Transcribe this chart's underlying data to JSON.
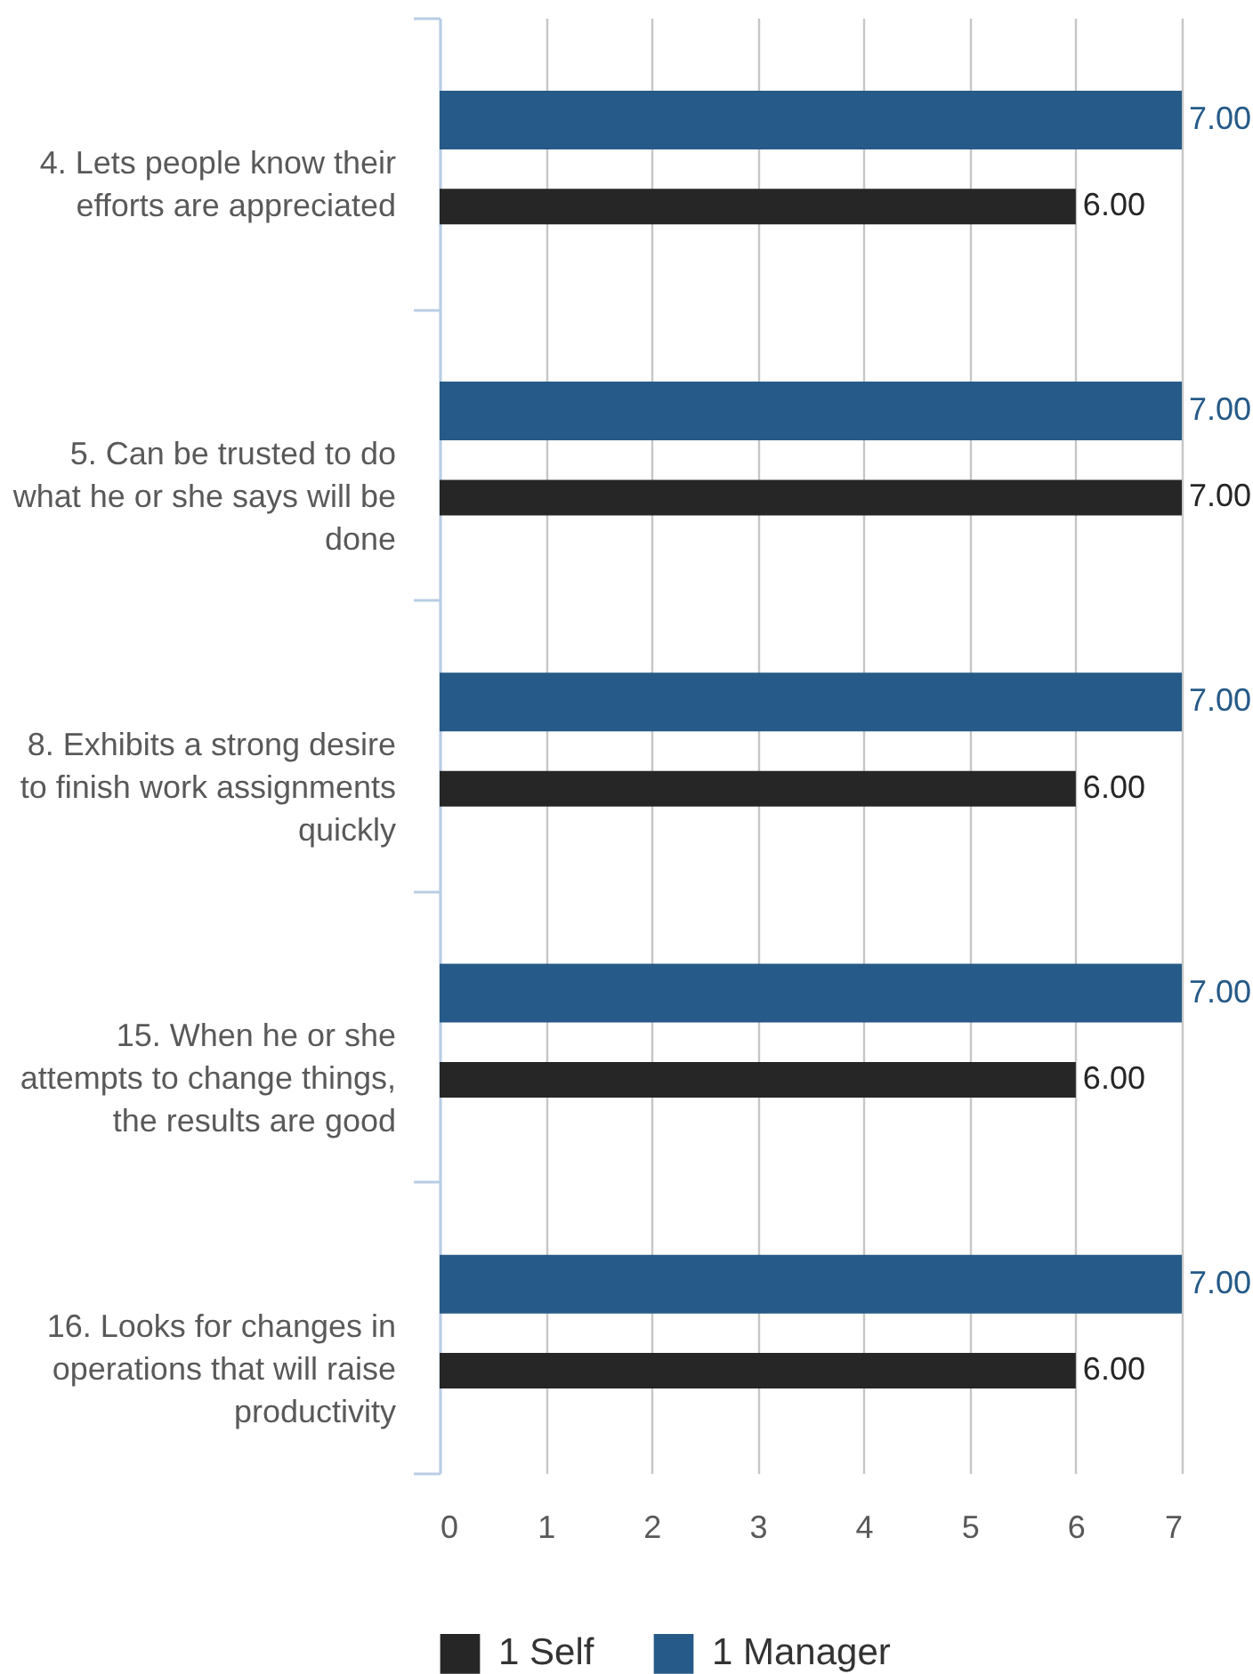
{
  "chart_data": {
    "type": "bar",
    "orientation": "horizontal",
    "categories": [
      "4. Lets people know their efforts are appreciated",
      "5. Can be trusted to do what he or she says will be done",
      "8. Exhibits a strong desire to finish work assignments quickly",
      "15. When he or she attempts to change things, the results are good",
      "16. Looks for changes in operations that will raise productivity"
    ],
    "series": [
      {
        "name": "1 Self",
        "color": "#262626",
        "values": [
          6,
          7,
          6,
          6,
          6
        ],
        "value_labels": [
          "6.00",
          "7.00",
          "6.00",
          "6.00",
          "6.00"
        ]
      },
      {
        "name": "1 Manager",
        "color": "#265a88",
        "values": [
          7,
          7,
          7,
          7,
          7
        ],
        "value_labels": [
          "7.00",
          "7.00",
          "7.00",
          "7.00",
          "7.00"
        ]
      }
    ],
    "xlim": [
      0,
      7
    ],
    "xticks": [
      0,
      1,
      2,
      3,
      4,
      5,
      6,
      7
    ],
    "grid": "x",
    "legend": "bottom"
  }
}
